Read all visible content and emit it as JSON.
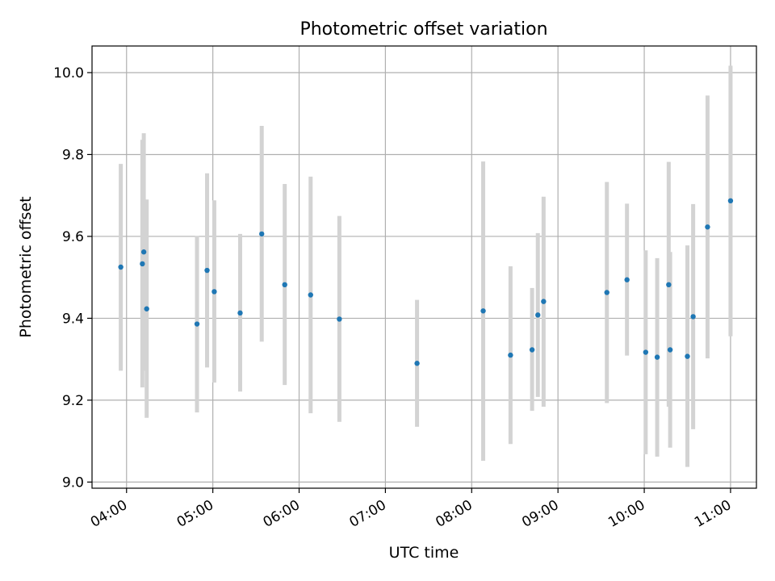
{
  "chart_data": {
    "type": "scatter",
    "title": "Photometric offset variation",
    "xlabel": "UTC time",
    "ylabel": "Photometric offset",
    "x_ticks": [
      "04:00",
      "05:00",
      "06:00",
      "07:00",
      "08:00",
      "09:00",
      "10:00",
      "11:00"
    ],
    "y_ticks": [
      "9.0",
      "9.2",
      "9.4",
      "9.6",
      "9.8",
      "10.0"
    ],
    "xlim": [
      "03:36",
      "11:18"
    ],
    "ylim": [
      8.985,
      10.065
    ],
    "grid": true,
    "colors": {
      "point": "#1f77b4",
      "errorbar": "#d3d3d3",
      "grid": "#b0b0b0"
    },
    "points": [
      {
        "x": "03:56",
        "y": 9.525,
        "err_low": 9.272,
        "err_high": 9.777
      },
      {
        "x": "04:11",
        "y": 9.533,
        "err_low": 9.231,
        "err_high": 9.836
      },
      {
        "x": "04:12",
        "y": 9.562,
        "err_low": 9.272,
        "err_high": 9.852
      },
      {
        "x": "04:14",
        "y": 9.423,
        "err_low": 9.157,
        "err_high": 9.69
      },
      {
        "x": "04:49",
        "y": 9.386,
        "err_low": 9.17,
        "err_high": 9.601
      },
      {
        "x": "04:56",
        "y": 9.517,
        "err_low": 9.28,
        "err_high": 9.754
      },
      {
        "x": "05:01",
        "y": 9.465,
        "err_low": 9.243,
        "err_high": 9.688
      },
      {
        "x": "05:19",
        "y": 9.413,
        "err_low": 9.221,
        "err_high": 9.606
      },
      {
        "x": "05:34",
        "y": 9.606,
        "err_low": 9.343,
        "err_high": 9.87
      },
      {
        "x": "05:50",
        "y": 9.482,
        "err_low": 9.237,
        "err_high": 9.728
      },
      {
        "x": "06:08",
        "y": 9.457,
        "err_low": 9.168,
        "err_high": 9.746
      },
      {
        "x": "06:28",
        "y": 9.398,
        "err_low": 9.147,
        "err_high": 9.65
      },
      {
        "x": "07:22",
        "y": 9.29,
        "err_low": 9.135,
        "err_high": 9.445
      },
      {
        "x": "08:08",
        "y": 9.418,
        "err_low": 9.052,
        "err_high": 9.783
      },
      {
        "x": "08:27",
        "y": 9.31,
        "err_low": 9.093,
        "err_high": 9.527
      },
      {
        "x": "08:42",
        "y": 9.323,
        "err_low": 9.174,
        "err_high": 9.474
      },
      {
        "x": "08:46",
        "y": 9.408,
        "err_low": 9.208,
        "err_high": 9.608
      },
      {
        "x": "08:50",
        "y": 9.441,
        "err_low": 9.184,
        "err_high": 9.697
      },
      {
        "x": "09:34",
        "y": 9.463,
        "err_low": 9.193,
        "err_high": 9.733
      },
      {
        "x": "09:48",
        "y": 9.494,
        "err_low": 9.309,
        "err_high": 9.68
      },
      {
        "x": "10:01",
        "y": 9.317,
        "err_low": 9.068,
        "err_high": 9.566
      },
      {
        "x": "10:09",
        "y": 9.305,
        "err_low": 9.062,
        "err_high": 9.547
      },
      {
        "x": "10:17",
        "y": 9.482,
        "err_low": 9.184,
        "err_high": 9.782
      },
      {
        "x": "10:18",
        "y": 9.323,
        "err_low": 9.084,
        "err_high": 9.562
      },
      {
        "x": "10:30",
        "y": 9.307,
        "err_low": 9.037,
        "err_high": 9.578
      },
      {
        "x": "10:34",
        "y": 9.404,
        "err_low": 9.129,
        "err_high": 9.679
      },
      {
        "x": "10:44",
        "y": 9.623,
        "err_low": 9.302,
        "err_high": 9.944
      },
      {
        "x": "11:00",
        "y": 9.687,
        "err_low": 9.356,
        "err_high": 10.017
      }
    ]
  }
}
